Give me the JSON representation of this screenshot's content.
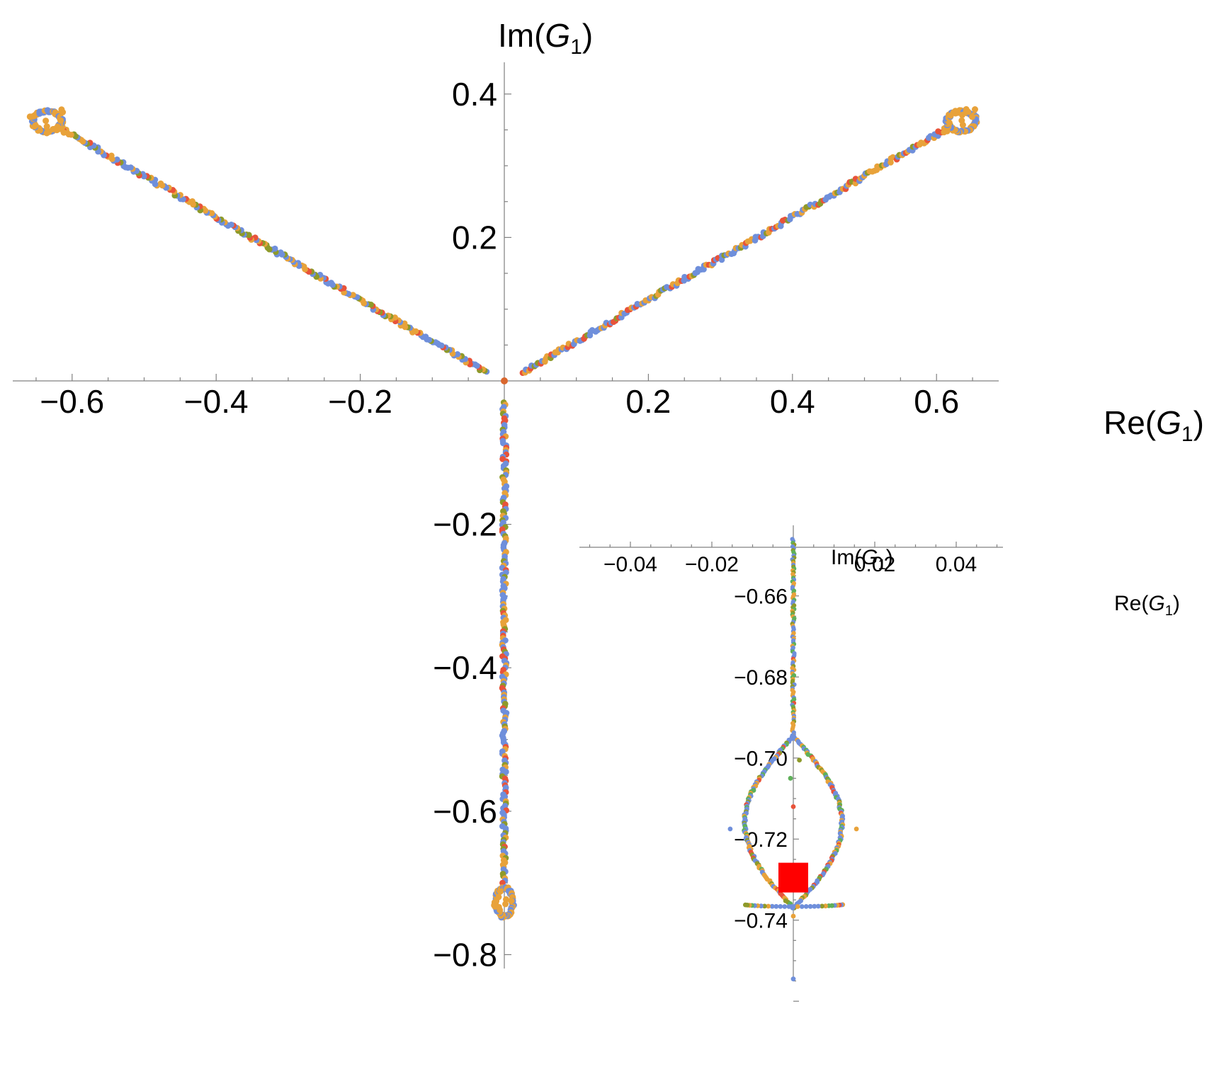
{
  "chart_data": [
    {
      "type": "scatter",
      "title": "",
      "xlabel": {
        "base": "Re(",
        "var": "G",
        "sub": "1",
        "close": ")"
      },
      "ylabel": {
        "base": "Im(",
        "var": "G",
        "sub": "1",
        "close": ")"
      },
      "xlim": [
        -0.68,
        0.68
      ],
      "ylim": [
        -0.8,
        0.42
      ],
      "x_ticks": [
        -0.6,
        -0.4,
        -0.2,
        0.2,
        0.4,
        0.6
      ],
      "x_tick_labels": [
        "−0.6",
        "−0.4",
        "−0.2",
        "0.2",
        "0.4",
        "0.6"
      ],
      "y_ticks": [
        0.4,
        0.2,
        -0.2,
        -0.4,
        -0.6,
        -0.8
      ],
      "y_tick_labels": [
        "0.4",
        "0.2",
        "−0.2",
        "−0.4",
        "−0.6",
        "−0.8"
      ],
      "grid": false,
      "series_colors": [
        "#6f8fdb",
        "#e8a23a",
        "#e8533a",
        "#8e9a2a",
        "#5fb05a"
      ],
      "branches": [
        {
          "from": [
            -0.025,
            0.012
          ],
          "to": [
            -0.62,
            0.355
          ],
          "loop_center": [
            -0.635,
            0.362
          ],
          "loop_rx": 0.02,
          "loop_ry": 0.014
        },
        {
          "from": [
            0.025,
            0.012
          ],
          "to": [
            0.62,
            0.355
          ],
          "loop_center": [
            0.635,
            0.362
          ],
          "loop_rx": 0.02,
          "loop_ry": 0.014
        },
        {
          "from": [
            0.0,
            -0.03
          ],
          "to": [
            0.0,
            -0.7
          ],
          "loop_center": [
            0.0,
            -0.727
          ],
          "loop_rx": 0.012,
          "loop_ry": 0.02
        }
      ],
      "origin_point": [
        0.0,
        0.0
      ]
    },
    {
      "type": "scatter",
      "title": "",
      "xlabel": {
        "base": "Re(",
        "var": "G",
        "sub": "1",
        "close": ")"
      },
      "ylabel": {
        "base": "Im(",
        "var": "G",
        "sub": "1",
        "close": ")"
      },
      "xlim": [
        -0.052,
        0.052
      ],
      "ylim": [
        -0.758,
        -0.648
      ],
      "x_ticks": [
        -0.04,
        -0.02,
        0.02,
        0.04
      ],
      "x_tick_labels": [
        "−0.04",
        "−0.02",
        "0.02",
        "0.04"
      ],
      "y_ticks": [
        -0.66,
        -0.68,
        -0.7,
        -0.72,
        -0.74
      ],
      "y_tick_labels": [
        "−0.66",
        "−0.68",
        "−0.70",
        "−0.72",
        "−0.74"
      ],
      "grid": false,
      "branch_top": -0.646,
      "branch_bottom": -0.6945,
      "teardrop": {
        "top": [
          0.0,
          -0.6945
        ],
        "bottom_y": -0.737,
        "max_halfwidth": 0.015
      },
      "marker": {
        "x": 0.0,
        "y": -0.7295,
        "color": "#ff0000"
      }
    }
  ]
}
